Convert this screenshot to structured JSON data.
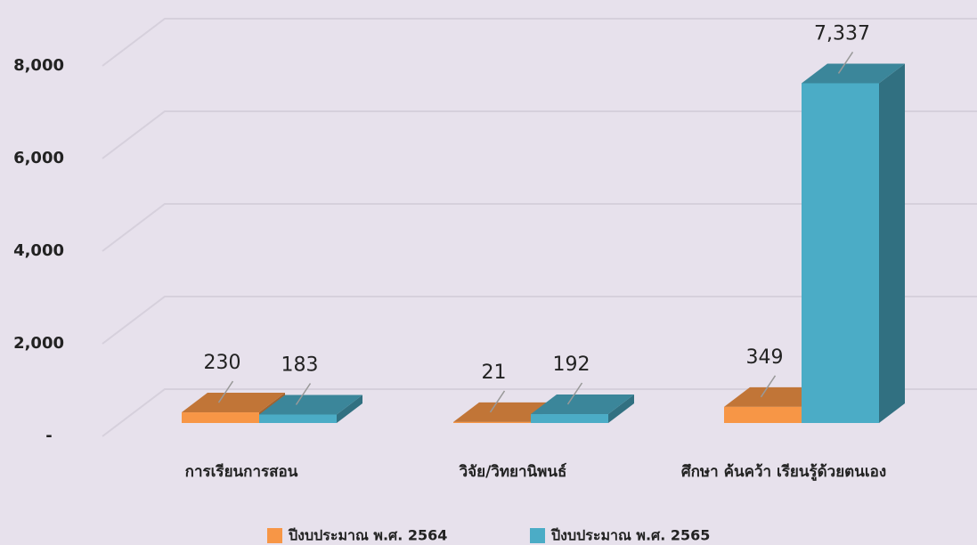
{
  "chart_data": {
    "type": "bar3d",
    "categories": [
      "การเรียนการสอน",
      "วิจัย/วิทยานิพนธ์",
      "ศึกษา ค้นคว้า เรียนรู้ด้วยตนเอง"
    ],
    "series": [
      {
        "name": "ปีงบประมาณ พ.ศ. 2564",
        "color": "#f79646",
        "values": [
          230,
          21,
          349
        ],
        "value_labels": [
          "230",
          "21",
          "349"
        ]
      },
      {
        "name": "ปีงบประมาณ พ.ศ. 2565",
        "color": "#4bacc6",
        "values": [
          183,
          192,
          7337
        ],
        "value_labels": [
          "183",
          "192",
          "7,337"
        ]
      }
    ],
    "ylim": [
      0,
      8000
    ],
    "yticks": [
      {
        "value": 0,
        "label": "-"
      },
      {
        "value": 2000,
        "label": "2,000"
      },
      {
        "value": 4000,
        "label": "4,000"
      },
      {
        "value": 6000,
        "label": "6,000"
      },
      {
        "value": 8000,
        "label": "8,000"
      }
    ],
    "grid": true,
    "legend": "bottom"
  }
}
